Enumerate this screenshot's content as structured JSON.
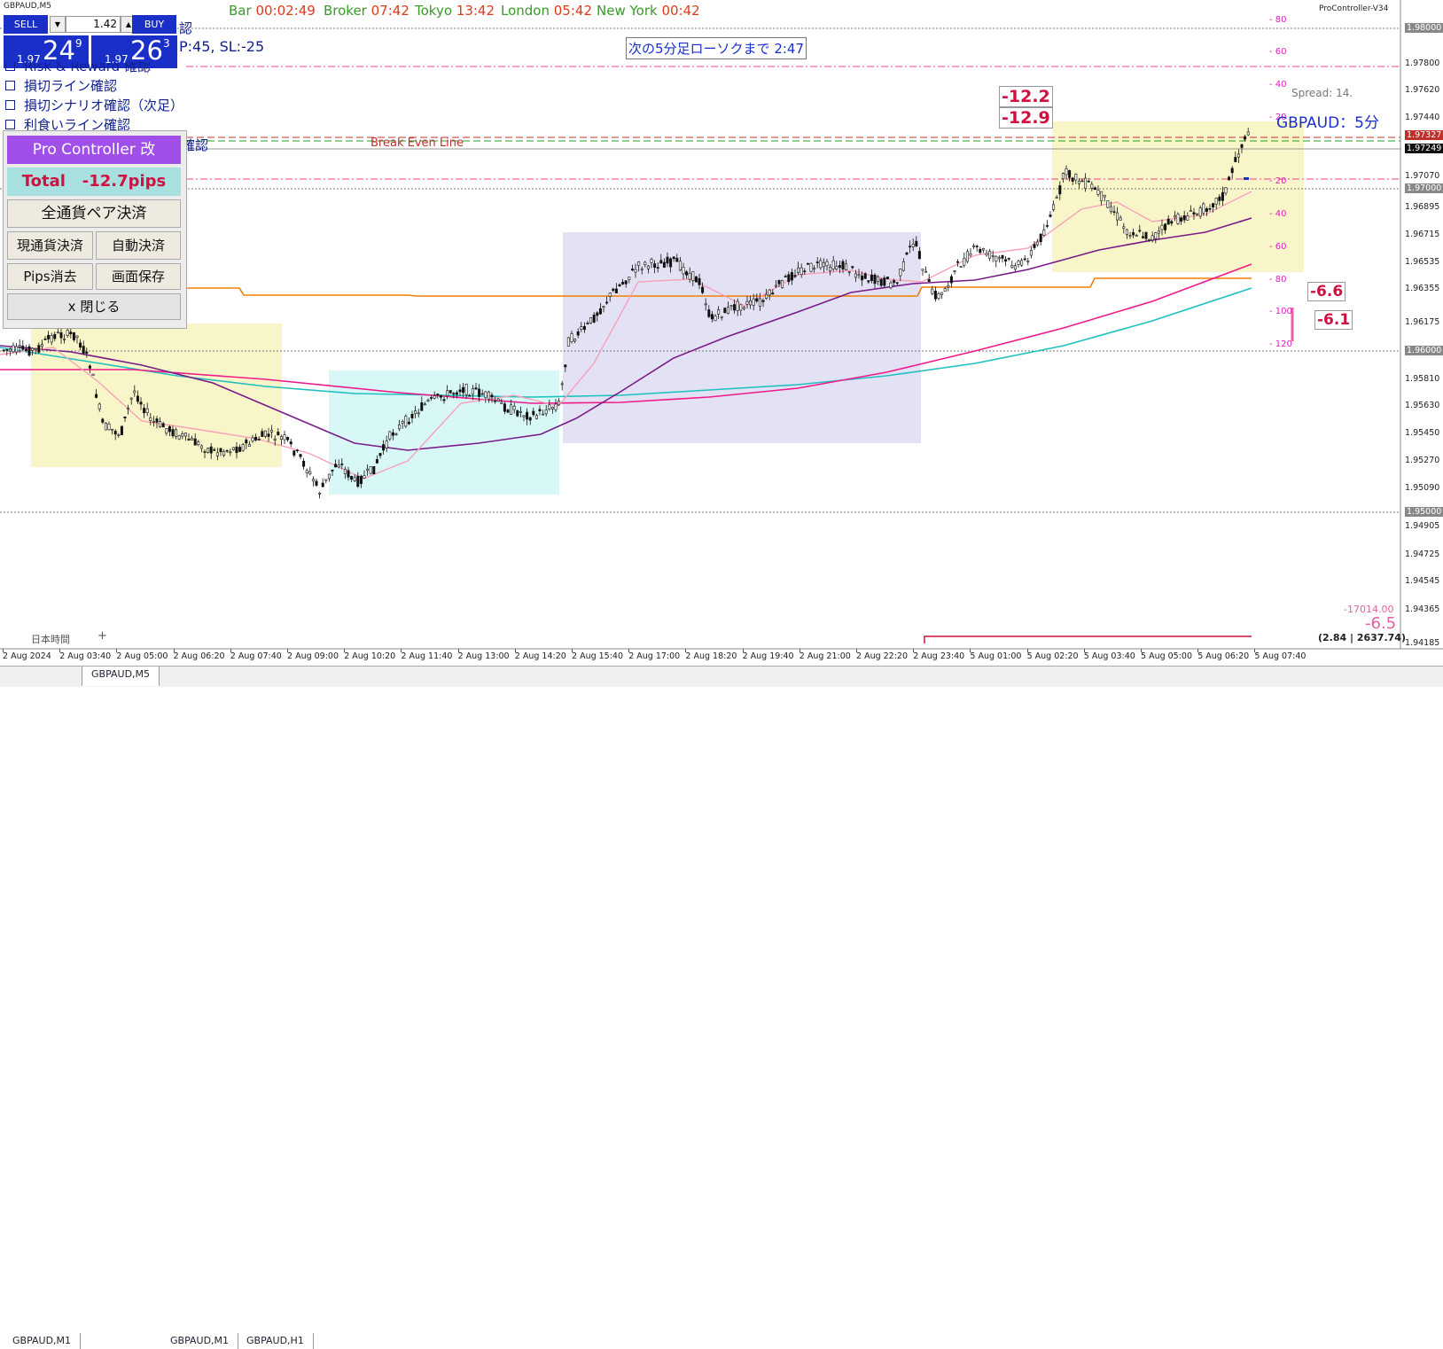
{
  "window_title": "GBPAUD,M5",
  "indicator_name": "ProController-V34",
  "clocks": [
    {
      "label": "Bar",
      "time": "00:02:49"
    },
    {
      "label": "Broker",
      "time": "07:42"
    },
    {
      "label": "Tokyo",
      "time": "13:42"
    },
    {
      "label": "London",
      "time": "05:42"
    },
    {
      "label": "New York",
      "time": "00:42"
    }
  ],
  "trade_panel": {
    "sell_label": "SELL",
    "buy_label": "BUY",
    "lot": "1.42",
    "sell_price_prefix": "1.97",
    "sell_price_main": "24",
    "sell_price_sup": "9",
    "buy_price_prefix": "1.97",
    "buy_price_main": "26",
    "buy_price_sup": "3"
  },
  "tp_sl_text": "P:45, SL:-25",
  "checklist": [
    {
      "label": "Risk & Reward 確認"
    },
    {
      "label": "損切ライン確認"
    },
    {
      "label": "損切シナリオ確認（次足）"
    },
    {
      "label": "利食いライン確認"
    }
  ],
  "hidden_check_suffix": "確認",
  "hidden_top_suffix": "認",
  "next_candle_text": "次の5分足ローソクまで 2:47",
  "break_even_label": "Break Even Line",
  "spread_text": "Spread: 14.",
  "symbol_timeframe": "GBPAUD：5分",
  "controller": {
    "title": "Pro Controller 改",
    "total_label": "Total",
    "total_value": "-12.7pips",
    "close_all_label": "全通貨ペア決済",
    "close_current_label": "現通貨決済",
    "auto_close_label": "自動決済",
    "pips_clear_label": "Pips消去",
    "save_screen_label": "画面保存",
    "close_label": "x 閉じる"
  },
  "pnl_boxes": {
    "a": "-12.2",
    "b": "-12.9",
    "c": "-6.6",
    "d": "-6.1"
  },
  "bottom_right": {
    "balance": "-17014.00",
    "value": "-6.5",
    "stats": "(2.84 | 2637.74)"
  },
  "japan_time_label": "日本時間",
  "plus_sign": "+",
  "pips_scale": [
    "80",
    "60",
    "40",
    "20",
    "20",
    "40",
    "60",
    "80",
    "100",
    "120"
  ],
  "price_scale": [
    {
      "label": "1.98000",
      "boxed": true
    },
    {
      "label": "1.97800"
    },
    {
      "label": "1.97620"
    },
    {
      "label": "1.97440"
    },
    {
      "label": "1.97327",
      "highlight": "#c0302a"
    },
    {
      "label": "1.97249",
      "highlight": "#111111"
    },
    {
      "label": "1.97070"
    },
    {
      "label": "1.97000",
      "boxed": true
    },
    {
      "label": "1.96895"
    },
    {
      "label": "1.96715"
    },
    {
      "label": "1.96535"
    },
    {
      "label": "1.96355"
    },
    {
      "label": "1.96175"
    },
    {
      "label": "1.96000",
      "boxed": true
    },
    {
      "label": "1.95810"
    },
    {
      "label": "1.95630"
    },
    {
      "label": "1.95450"
    },
    {
      "label": "1.95270"
    },
    {
      "label": "1.95090"
    },
    {
      "label": "1.95000",
      "boxed": true
    },
    {
      "label": "1.94905"
    },
    {
      "label": "1.94725"
    },
    {
      "label": "1.94545"
    },
    {
      "label": "1.94365"
    },
    {
      "label": "1.94185"
    }
  ],
  "time_scale": [
    "2 Aug 2024",
    "2 Aug 03:40",
    "2 Aug 05:00",
    "2 Aug 06:20",
    "2 Aug 07:40",
    "2 Aug 09:00",
    "2 Aug 10:20",
    "2 Aug 11:40",
    "2 Aug 13:00",
    "2 Aug 14:20",
    "2 Aug 15:40",
    "2 Aug 17:00",
    "2 Aug 18:20",
    "2 Aug 19:40",
    "2 Aug 21:00",
    "2 Aug 22:20",
    "2 Aug 23:40",
    "5 Aug 01:00",
    "5 Aug 02:20",
    "5 Aug 03:40",
    "5 Aug 05:00",
    "5 Aug 06:20",
    "5 Aug 07:40"
  ],
  "tabs": [
    {
      "label": "GBPAUD,M1",
      "active": false
    },
    {
      "label": "GBPAUD,M5",
      "active": true
    },
    {
      "label": "GBPAUD,M1",
      "active": false
    },
    {
      "label": "GBPAUD,H1",
      "active": false
    }
  ],
  "colors": {
    "sell_bg": "#1a2fc8",
    "controller_title_bg": "#a050e8",
    "total_bg": "#a8e0e0",
    "total_text": "#d01040",
    "session_yellow": "#f8f6c8",
    "session_cyan": "#d8f8f8",
    "session_lavender": "#e2e2f4",
    "ma_orange": "#f08000",
    "ma_purple": "#7a1a8a",
    "ma_pink": "#f01a8a",
    "ma_cyan": "#20c0c0",
    "ma_lightpink": "#f8a0b8"
  }
}
